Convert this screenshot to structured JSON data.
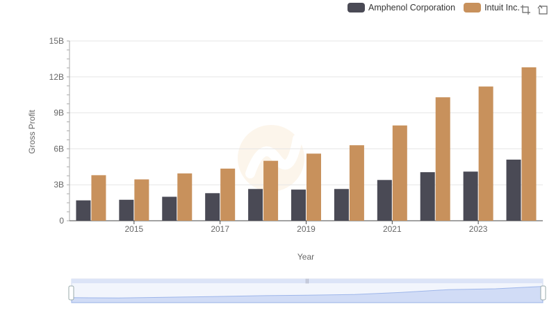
{
  "legend": {
    "items": [
      {
        "label": "Amphenol Corporation",
        "color": "#4a4a55"
      },
      {
        "label": "Intuit Inc.",
        "color": "#c8915c"
      }
    ]
  },
  "toolbar": {
    "icons": [
      "zoom-box-icon",
      "reset-zoom-icon"
    ]
  },
  "chart_data": {
    "type": "bar",
    "xlabel": "Year",
    "ylabel": "Gross Profit",
    "ylim": [
      0,
      15
    ],
    "yticks": [
      "0",
      "3B",
      "6B",
      "9B",
      "12B",
      "15B"
    ],
    "categories": [
      "2014",
      "2015",
      "2016",
      "2017",
      "2018",
      "2019",
      "2020",
      "2021",
      "2022",
      "2023",
      "2024"
    ],
    "xtick_labels": [
      "2015",
      "2017",
      "2019",
      "2021",
      "2023"
    ],
    "series": [
      {
        "name": "Amphenol Corporation",
        "color": "#4a4a55",
        "values": [
          1.7,
          1.75,
          2.0,
          2.3,
          2.65,
          2.6,
          2.65,
          3.4,
          4.05,
          4.1,
          5.1
        ]
      },
      {
        "name": "Intuit Inc.",
        "color": "#c8915c",
        "values": [
          3.8,
          3.45,
          3.95,
          4.35,
          5.0,
          5.6,
          6.3,
          7.95,
          10.3,
          11.2,
          12.8
        ]
      }
    ],
    "grid": true,
    "legend_position": "top-right",
    "has_zoom_slider": true
  }
}
